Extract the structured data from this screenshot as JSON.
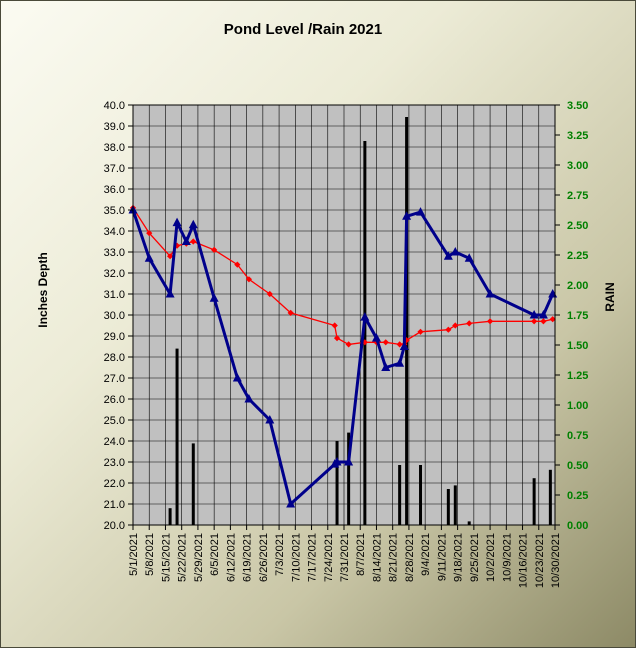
{
  "chart_data": {
    "type": "line",
    "title": "Pond Level /Rain 2021",
    "ylabel": "Inches Depth",
    "y2label": "RAIN",
    "ylim": [
      20,
      40
    ],
    "y_ticks": [
      "20.0",
      "21.0",
      "22.0",
      "23.0",
      "24.0",
      "25.0",
      "26.0",
      "27.0",
      "28.0",
      "29.0",
      "30.0",
      "31.0",
      "32.0",
      "33.0",
      "34.0",
      "35.0",
      "36.0",
      "37.0",
      "38.0",
      "39.0",
      "40.0"
    ],
    "y2lim": [
      0,
      3.5
    ],
    "y2_ticks": [
      "0.00",
      "0.25",
      "0.50",
      "0.75",
      "1.00",
      "1.25",
      "1.50",
      "1.75",
      "2.00",
      "2.25",
      "2.50",
      "2.75",
      "3.00",
      "3.25",
      "3.50"
    ],
    "xlim": [
      "2021-05-01",
      "2021-10-30"
    ],
    "x_ticks": [
      "5/1/2021",
      "5/8/2021",
      "5/15/2021",
      "5/22/2021",
      "5/29/2021",
      "6/5/2021",
      "6/12/2021",
      "6/19/2021",
      "6/26/2021",
      "7/3/2021",
      "7/10/2021",
      "7/17/2021",
      "7/24/2021",
      "7/31/2021",
      "8/7/2021",
      "8/14/2021",
      "8/21/2021",
      "8/28/2021",
      "9/4/2021",
      "9/11/2021",
      "9/18/2021",
      "9/25/2021",
      "10/2/2021",
      "10/9/2021",
      "10/16/2021",
      "10/23/2021",
      "10/30/2021"
    ],
    "grid": true,
    "legend": "none",
    "colors": {
      "pond_series": "#00008b",
      "red_series": "#ff0000",
      "rain_bars": "#000000",
      "plot_bg": "#c0c0c0",
      "right_axis": "#008000"
    },
    "series": [
      {
        "axis": "left",
        "marker": "triangle",
        "points": [
          {
            "x": "2021-05-01",
            "y": 35.0
          },
          {
            "x": "2021-05-08",
            "y": 32.7
          },
          {
            "x": "2021-05-17",
            "y": 31.0
          },
          {
            "x": "2021-05-20",
            "y": 34.4
          },
          {
            "x": "2021-05-24",
            "y": 33.5
          },
          {
            "x": "2021-05-27",
            "y": 34.3
          },
          {
            "x": "2021-06-05",
            "y": 30.8
          },
          {
            "x": "2021-06-15",
            "y": 27.0
          },
          {
            "x": "2021-06-20",
            "y": 26.0
          },
          {
            "x": "2021-06-29",
            "y": 25.0
          },
          {
            "x": "2021-07-08",
            "y": 21.0
          },
          {
            "x": "2021-07-27",
            "y": 22.9
          },
          {
            "x": "2021-07-28",
            "y": 23.0
          },
          {
            "x": "2021-08-02",
            "y": 23.0
          },
          {
            "x": "2021-08-09",
            "y": 29.9
          },
          {
            "x": "2021-08-14",
            "y": 28.9
          },
          {
            "x": "2021-08-18",
            "y": 27.5
          },
          {
            "x": "2021-08-24",
            "y": 27.7
          },
          {
            "x": "2021-08-26",
            "y": 28.5
          },
          {
            "x": "2021-08-27",
            "y": 34.7
          },
          {
            "x": "2021-09-02",
            "y": 34.9
          },
          {
            "x": "2021-09-14",
            "y": 32.8
          },
          {
            "x": "2021-09-17",
            "y": 33.0
          },
          {
            "x": "2021-09-23",
            "y": 32.7
          },
          {
            "x": "2021-10-02",
            "y": 31.0
          },
          {
            "x": "2021-10-21",
            "y": 30.0
          },
          {
            "x": "2021-10-25",
            "y": 30.0
          },
          {
            "x": "2021-10-29",
            "y": 31.0
          }
        ]
      },
      {
        "axis": "left",
        "marker": "diamond",
        "points": [
          {
            "x": "2021-05-01",
            "y": 35.1
          },
          {
            "x": "2021-05-08",
            "y": 33.9
          },
          {
            "x": "2021-05-17",
            "y": 32.8
          },
          {
            "x": "2021-05-20",
            "y": 33.3
          },
          {
            "x": "2021-05-24",
            "y": 33.4
          },
          {
            "x": "2021-05-27",
            "y": 33.5
          },
          {
            "x": "2021-06-05",
            "y": 33.1
          },
          {
            "x": "2021-06-15",
            "y": 32.4
          },
          {
            "x": "2021-06-20",
            "y": 31.7
          },
          {
            "x": "2021-06-29",
            "y": 31.0
          },
          {
            "x": "2021-07-08",
            "y": 30.1
          },
          {
            "x": "2021-07-27",
            "y": 29.5
          },
          {
            "x": "2021-07-28",
            "y": 28.9
          },
          {
            "x": "2021-08-02",
            "y": 28.6
          },
          {
            "x": "2021-08-09",
            "y": 28.7
          },
          {
            "x": "2021-08-14",
            "y": 28.7
          },
          {
            "x": "2021-08-18",
            "y": 28.7
          },
          {
            "x": "2021-08-24",
            "y": 28.6
          },
          {
            "x": "2021-08-26",
            "y": 28.6
          },
          {
            "x": "2021-08-27",
            "y": 28.8
          },
          {
            "x": "2021-09-02",
            "y": 29.2
          },
          {
            "x": "2021-09-14",
            "y": 29.3
          },
          {
            "x": "2021-09-17",
            "y": 29.5
          },
          {
            "x": "2021-09-23",
            "y": 29.6
          },
          {
            "x": "2021-10-02",
            "y": 29.7
          },
          {
            "x": "2021-10-21",
            "y": 29.7
          },
          {
            "x": "2021-10-25",
            "y": 29.7
          },
          {
            "x": "2021-10-29",
            "y": 29.8
          }
        ]
      },
      {
        "axis": "right",
        "type": "bar",
        "points": [
          {
            "x": "2021-05-17",
            "y": 0.14
          },
          {
            "x": "2021-05-20",
            "y": 1.47
          },
          {
            "x": "2021-05-27",
            "y": 0.68
          },
          {
            "x": "2021-07-28",
            "y": 0.7
          },
          {
            "x": "2021-08-02",
            "y": 0.77
          },
          {
            "x": "2021-08-09",
            "y": 3.2
          },
          {
            "x": "2021-08-24",
            "y": 0.5
          },
          {
            "x": "2021-08-27",
            "y": 3.4
          },
          {
            "x": "2021-09-02",
            "y": 0.5
          },
          {
            "x": "2021-09-14",
            "y": 0.3
          },
          {
            "x": "2021-09-17",
            "y": 0.33
          },
          {
            "x": "2021-09-23",
            "y": 0.03
          },
          {
            "x": "2021-10-21",
            "y": 0.39
          },
          {
            "x": "2021-10-28",
            "y": 0.46
          }
        ]
      }
    ]
  }
}
